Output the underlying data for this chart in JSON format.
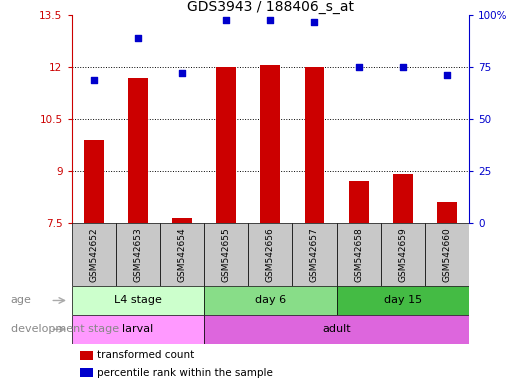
{
  "title": "GDS3943 / 188406_s_at",
  "samples": [
    "GSM542652",
    "GSM542653",
    "GSM542654",
    "GSM542655",
    "GSM542656",
    "GSM542657",
    "GSM542658",
    "GSM542659",
    "GSM542660"
  ],
  "transformed_count": [
    9.9,
    11.7,
    7.65,
    12.0,
    12.05,
    12.0,
    8.7,
    8.9,
    8.1
  ],
  "percentile_rank": [
    69,
    89,
    72,
    98,
    98,
    97,
    75,
    75,
    71
  ],
  "ylim_left": [
    7.5,
    13.5
  ],
  "ylim_right": [
    0,
    100
  ],
  "yticks_left": [
    7.5,
    9.0,
    10.5,
    12.0,
    13.5
  ],
  "yticks_right": [
    0,
    25,
    50,
    75,
    100
  ],
  "ytick_labels_left": [
    "7.5",
    "9",
    "10.5",
    "12",
    "13.5"
  ],
  "ytick_labels_right": [
    "0",
    "25",
    "50",
    "75",
    "100%"
  ],
  "bar_color": "#cc0000",
  "dot_color": "#0000cc",
  "age_groups": [
    {
      "label": "L4 stage",
      "start": 0,
      "end": 3,
      "color": "#ccffcc"
    },
    {
      "label": "day 6",
      "start": 3,
      "end": 6,
      "color": "#88dd88"
    },
    {
      "label": "day 15",
      "start": 6,
      "end": 9,
      "color": "#44bb44"
    }
  ],
  "dev_groups": [
    {
      "label": "larval",
      "start": 0,
      "end": 3,
      "color": "#ff99ff"
    },
    {
      "label": "adult",
      "start": 3,
      "end": 9,
      "color": "#dd66dd"
    }
  ],
  "age_label": "age",
  "dev_label": "development stage",
  "legend_items": [
    {
      "color": "#cc0000",
      "label": "transformed count"
    },
    {
      "color": "#0000cc",
      "label": "percentile rank within the sample"
    }
  ],
  "sample_bg_color": "#c8c8c8",
  "grid_color": "black",
  "background_color": "#ffffff"
}
